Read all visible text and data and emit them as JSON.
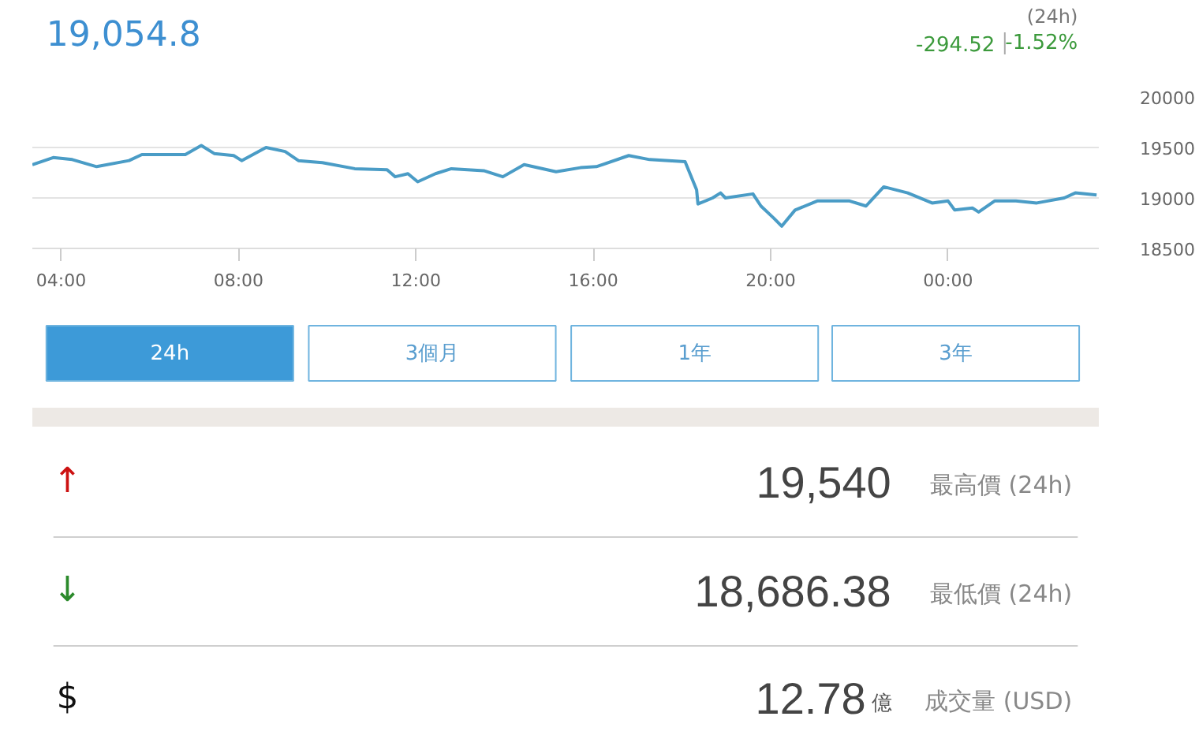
{
  "chart_data": [
    {
      "type": "line",
      "title": "19,054.8",
      "annotations": [
        "(24h)",
        "-294.52",
        "-1.52%"
      ],
      "series": [
        {
          "color": "#4a9cc6",
          "x": [
            3.35,
            3.82,
            4.25,
            4.8,
            5.53,
            5.82,
            6.8,
            7.16,
            7.45,
            7.89,
            8.07,
            8.62,
            9.05,
            9.35,
            9.89,
            10.62,
            11.35,
            11.53,
            11.82,
            12.04,
            12.44,
            12.8,
            13.53,
            13.96,
            14.44,
            15.16,
            15.71,
            16.07,
            16.8,
            17.27,
            18.07,
            18.33,
            18.36,
            18.69,
            18.87,
            18.98,
            19.6,
            19.78,
            20.07,
            20.25,
            20.55,
            21.05,
            21.42,
            21.78,
            22.15,
            22.55,
            23.09,
            23.64,
            24.0,
            24.15,
            24.55,
            24.69,
            25.05,
            25.53,
            26.0,
            26.62,
            26.87,
            27.35
          ],
          "values": [
            19330,
            19400,
            19380,
            19310,
            19370,
            19430,
            19430,
            19520,
            19440,
            19420,
            19370,
            19500,
            19460,
            19370,
            19350,
            19290,
            19280,
            19210,
            19240,
            19160,
            19240,
            19290,
            19270,
            19210,
            19330,
            19260,
            19300,
            19310,
            19420,
            19380,
            19360,
            19080,
            18940,
            19000,
            19050,
            19000,
            19040,
            18920,
            18800,
            18720,
            18880,
            18970,
            18970,
            18970,
            18920,
            19110,
            19050,
            18950,
            18970,
            18880,
            18900,
            18860,
            18970,
            18970,
            18950,
            19000,
            19050,
            19030
          ]
        }
      ],
      "xlim": [
        3.35,
        27.4
      ],
      "ylim": [
        18500,
        20000
      ],
      "xticks": [
        {
          "value": 4,
          "label": "04:00"
        },
        {
          "value": 8,
          "label": "08:00"
        },
        {
          "value": 12,
          "label": "12:00"
        },
        {
          "value": 16,
          "label": "16:00"
        },
        {
          "value": 20,
          "label": "20:00"
        },
        {
          "value": 24,
          "label": "00:00"
        }
      ],
      "yticks": [
        18500,
        19000,
        19500,
        20000
      ],
      "grid": "y",
      "marker": "none",
      "line_style": "solid"
    },
    {
      "type": "other",
      "annotations": [
        "24h",
        "3個月",
        "1年",
        "3年",
        "↑",
        "19,540",
        "最高價 (24h)",
        "↓",
        "18,686.38",
        "最低價 (24h)",
        "$",
        "12.78",
        "億",
        "成交量 (USD)"
      ]
    }
  ]
}
